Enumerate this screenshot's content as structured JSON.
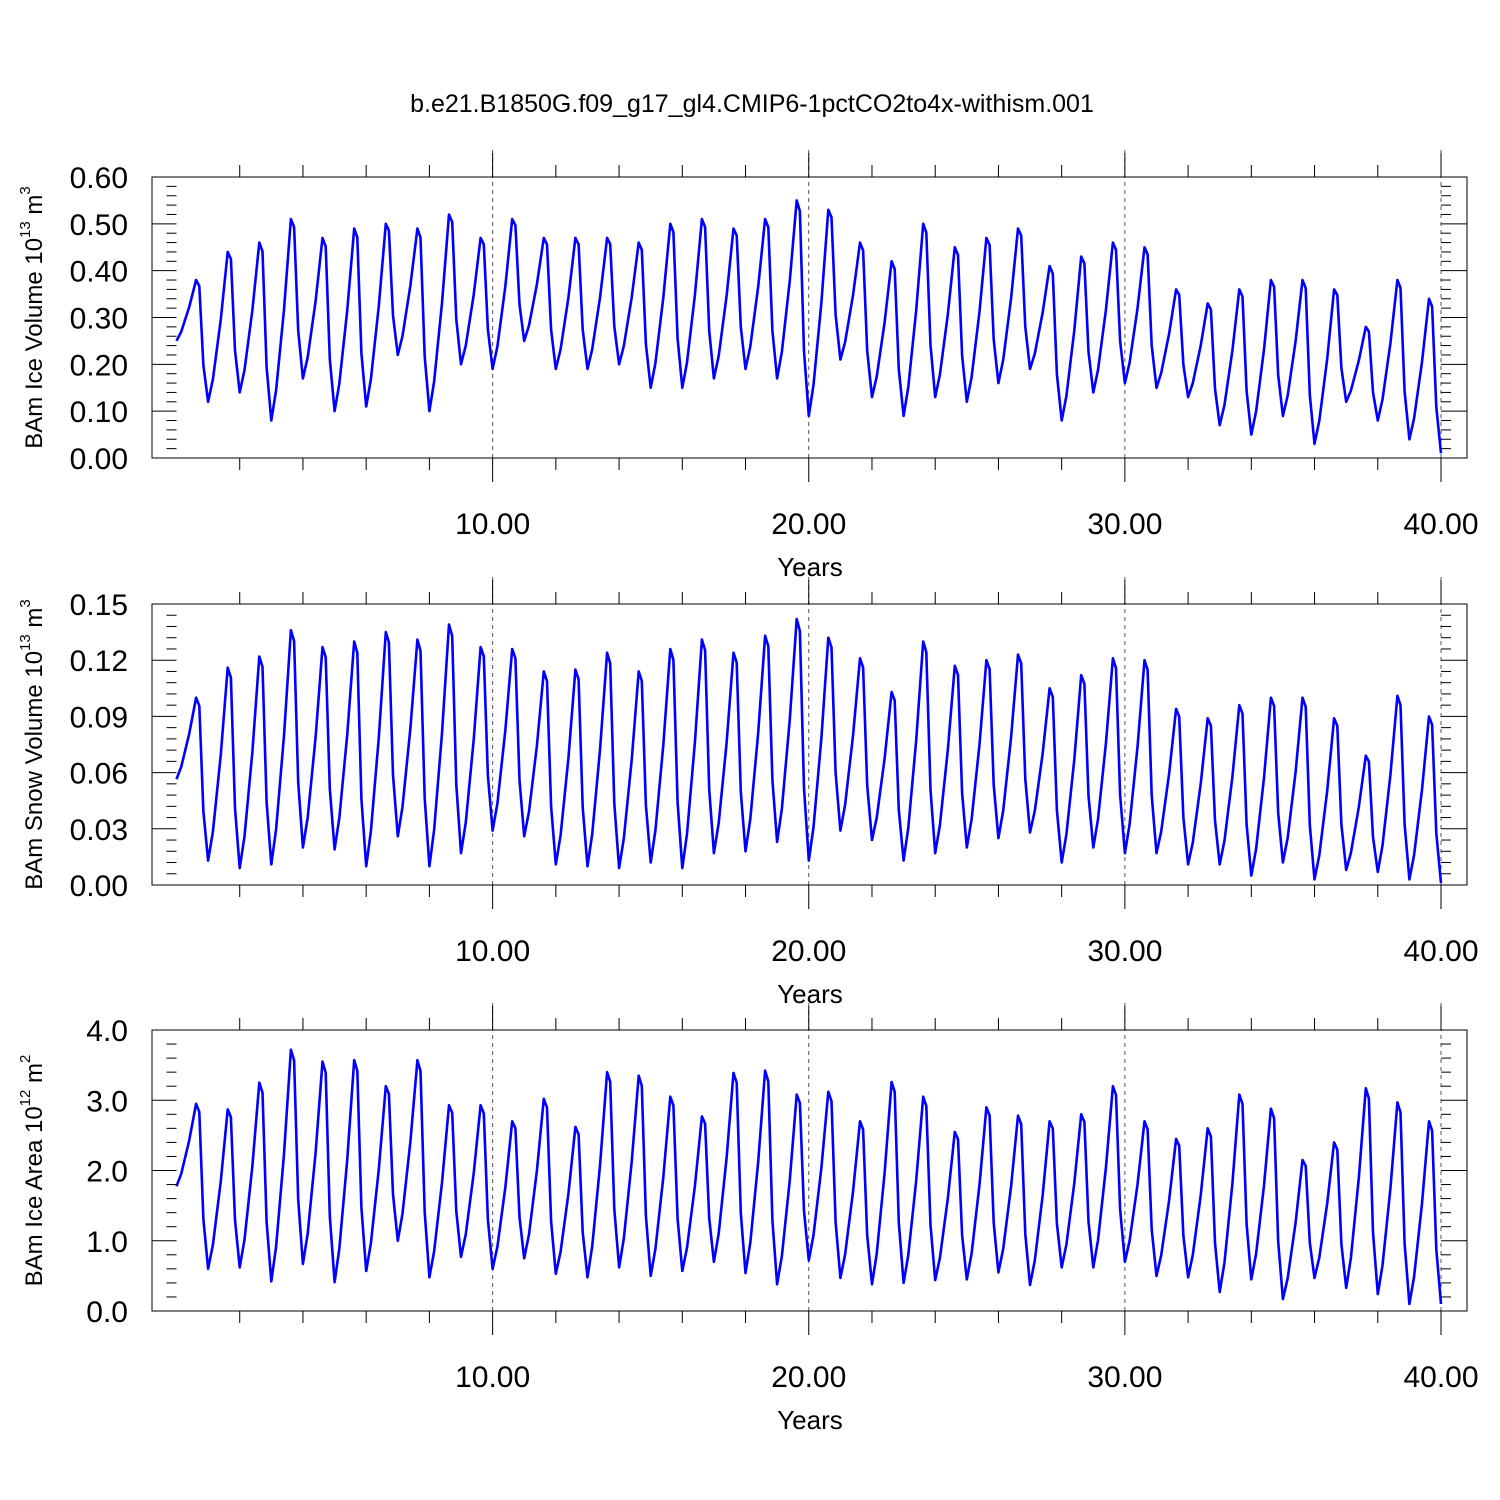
{
  "figure_title": "b.e21.B1850G.f09_g17_gl4.CMIP6-1pctCO2to4x-withism.001",
  "line_color": "#0000ff",
  "chart_data": [
    {
      "type": "line",
      "ylabel": {
        "prefix": "BAm Ice Volume 10",
        "exp": "13",
        "unit_base": " m",
        "unit_exp": "3"
      },
      "xlabel": "Years",
      "xlim": [
        0,
        40
      ],
      "ylim": [
        0.0,
        0.6
      ],
      "xticks": [
        "10.00",
        "20.00",
        "30.00",
        "40.00"
      ],
      "yticks": [
        "0.00",
        "0.10",
        "0.20",
        "0.30",
        "0.40",
        "0.50",
        "0.60"
      ],
      "series": [
        {
          "peaks": [
            0.38,
            0.44,
            0.46,
            0.51,
            0.47,
            0.49,
            0.5,
            0.49,
            0.52,
            0.47,
            0.51,
            0.47,
            0.47,
            0.47,
            0.46,
            0.5,
            0.51,
            0.49,
            0.51,
            0.55,
            0.53,
            0.46,
            0.42,
            0.5,
            0.45,
            0.47,
            0.49,
            0.41,
            0.43,
            0.46,
            0.45,
            0.36,
            0.33,
            0.36,
            0.38,
            0.38,
            0.36,
            0.28,
            0.38,
            0.34
          ],
          "troughs": [
            0.12,
            0.14,
            0.08,
            0.17,
            0.1,
            0.11,
            0.22,
            0.1,
            0.2,
            0.19,
            0.25,
            0.19,
            0.19,
            0.2,
            0.15,
            0.15,
            0.17,
            0.19,
            0.17,
            0.09,
            0.21,
            0.13,
            0.09,
            0.13,
            0.12,
            0.16,
            0.19,
            0.08,
            0.14,
            0.16,
            0.15,
            0.13,
            0.07,
            0.05,
            0.09,
            0.03,
            0.12,
            0.08,
            0.04,
            0.01
          ]
        }
      ]
    },
    {
      "type": "line",
      "ylabel": {
        "prefix": "BAm Snow Volume 10",
        "exp": "13",
        "unit_base": " m",
        "unit_exp": "3"
      },
      "xlabel": "Years",
      "xlim": [
        0,
        40
      ],
      "ylim": [
        0.0,
        0.15
      ],
      "xticks": [
        "10.00",
        "20.00",
        "30.00",
        "40.00"
      ],
      "yticks": [
        "0.00",
        "0.03",
        "0.06",
        "0.09",
        "0.12",
        "0.15"
      ],
      "series": [
        {
          "peaks": [
            0.1,
            0.116,
            0.122,
            0.136,
            0.127,
            0.13,
            0.135,
            0.131,
            0.139,
            0.127,
            0.126,
            0.114,
            0.115,
            0.124,
            0.114,
            0.126,
            0.131,
            0.124,
            0.133,
            0.142,
            0.132,
            0.121,
            0.103,
            0.13,
            0.117,
            0.12,
            0.123,
            0.105,
            0.112,
            0.121,
            0.12,
            0.094,
            0.089,
            0.096,
            0.1,
            0.1,
            0.089,
            0.069,
            0.101,
            0.09
          ],
          "troughs": [
            0.013,
            0.009,
            0.011,
            0.02,
            0.019,
            0.01,
            0.026,
            0.01,
            0.017,
            0.029,
            0.026,
            0.011,
            0.01,
            0.009,
            0.012,
            0.009,
            0.017,
            0.018,
            0.023,
            0.013,
            0.029,
            0.024,
            0.013,
            0.017,
            0.02,
            0.025,
            0.028,
            0.012,
            0.02,
            0.017,
            0.017,
            0.011,
            0.011,
            0.005,
            0.012,
            0.003,
            0.008,
            0.007,
            0.003,
            0.001
          ]
        }
      ]
    },
    {
      "type": "line",
      "ylabel": {
        "prefix": "BAm Ice Area 10",
        "exp": "12",
        "unit_base": " m",
        "unit_exp": "2"
      },
      "xlabel": "Years",
      "xlim": [
        0,
        40
      ],
      "ylim": [
        0.0,
        4.0
      ],
      "xticks": [
        "10.00",
        "20.00",
        "30.00",
        "40.00"
      ],
      "yticks": [
        "0.0",
        "1.0",
        "2.0",
        "3.0",
        "4.0"
      ],
      "series": [
        {
          "peaks": [
            2.95,
            2.87,
            3.25,
            3.72,
            3.55,
            3.57,
            3.2,
            3.57,
            2.93,
            2.93,
            2.7,
            3.02,
            2.62,
            3.4,
            3.35,
            3.05,
            2.77,
            3.39,
            3.42,
            3.08,
            3.12,
            2.7,
            3.26,
            3.05,
            2.55,
            2.9,
            2.78,
            2.7,
            2.8,
            3.2,
            2.7,
            2.45,
            2.6,
            3.08,
            2.88,
            2.15,
            2.4,
            3.17,
            2.97,
            2.7
          ],
          "troughs": [
            0.6,
            0.62,
            0.42,
            0.67,
            0.41,
            0.57,
            1.0,
            0.48,
            0.77,
            0.6,
            0.75,
            0.53,
            0.48,
            0.62,
            0.5,
            0.57,
            0.7,
            0.54,
            0.38,
            0.72,
            0.47,
            0.38,
            0.4,
            0.44,
            0.45,
            0.55,
            0.37,
            0.62,
            0.62,
            0.7,
            0.5,
            0.48,
            0.27,
            0.45,
            0.17,
            0.47,
            0.33,
            0.24,
            0.1,
            0.1
          ]
        }
      ]
    }
  ]
}
